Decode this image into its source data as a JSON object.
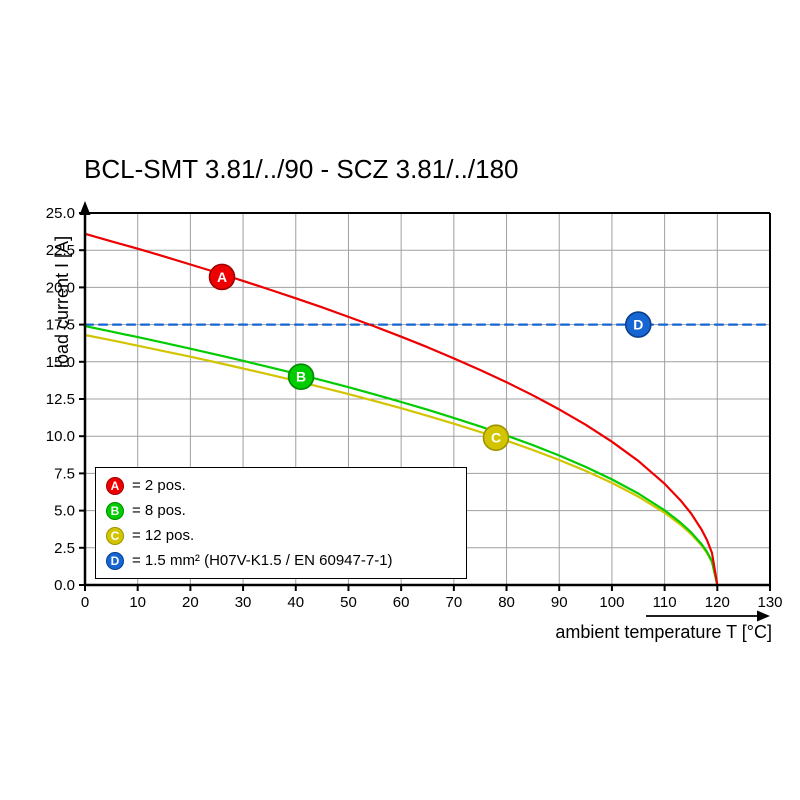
{
  "chart_data": {
    "type": "line",
    "title": "BCL-SMT 3.81/../90 - SCZ 3.81/../180",
    "xlabel": "ambient temperature T [°C]",
    "ylabel": "load current I [A]",
    "xlim": [
      0,
      130
    ],
    "ylim": [
      0,
      25
    ],
    "grid": true,
    "grid_color": "#a0a0a0",
    "x_ticks": [
      0,
      10,
      20,
      30,
      40,
      50,
      60,
      70,
      80,
      90,
      100,
      110,
      120,
      130
    ],
    "x_tick_labels": [
      "0",
      "10",
      "20",
      "30",
      "40",
      "50",
      "60",
      "70",
      "80",
      "90",
      "100",
      "110",
      "120",
      "130"
    ],
    "y_ticks": [
      0,
      2.5,
      5,
      7.5,
      10,
      12.5,
      15,
      17.5,
      20,
      22.5,
      25
    ],
    "y_tick_labels": [
      "0.0",
      "2.5",
      "5.0",
      "7.5",
      "10.0",
      "12.5",
      "15.0",
      "17.5",
      "20.0",
      "22.5",
      "25.0"
    ],
    "series": [
      {
        "id": "A",
        "name": "2 pos.",
        "color": "#ee0000",
        "edge": "#a00000",
        "style": "solid",
        "x": [
          0,
          5,
          10,
          15,
          20,
          25,
          30,
          35,
          40,
          45,
          50,
          55,
          60,
          65,
          70,
          75,
          80,
          85,
          90,
          95,
          100,
          105,
          110,
          113,
          115,
          117,
          118,
          119,
          120
        ],
        "y": [
          23.6,
          23.1,
          22.6,
          22.08,
          21.54,
          21.0,
          20.44,
          19.86,
          19.27,
          18.66,
          18.02,
          17.37,
          16.69,
          15.98,
          15.23,
          14.45,
          13.63,
          12.75,
          11.8,
          10.77,
          9.63,
          8.34,
          6.81,
          5.7,
          4.82,
          3.73,
          3.05,
          2.15,
          0
        ],
        "marker": {
          "x": 26,
          "y": 20.7,
          "label": "A"
        }
      },
      {
        "id": "B",
        "name": "8 pos.",
        "color": "#00cc00",
        "edge": "#008800",
        "style": "solid",
        "x": [
          0,
          5,
          10,
          15,
          20,
          25,
          30,
          35,
          40,
          45,
          50,
          55,
          60,
          65,
          70,
          75,
          80,
          85,
          90,
          95,
          100,
          105,
          110,
          113,
          115,
          117,
          118,
          119,
          120
        ],
        "y": [
          17.4,
          17.03,
          16.66,
          16.28,
          15.88,
          15.48,
          15.07,
          14.64,
          14.21,
          13.76,
          13.29,
          12.81,
          12.3,
          11.78,
          11.23,
          10.66,
          10.05,
          9.4,
          8.7,
          7.94,
          7.1,
          6.15,
          5.02,
          4.2,
          3.55,
          2.75,
          2.25,
          1.59,
          0
        ],
        "marker": {
          "x": 41,
          "y": 14.0,
          "label": "B"
        }
      },
      {
        "id": "C",
        "name": "12 pos.",
        "color": "#d2c500",
        "edge": "#9d9300",
        "style": "solid",
        "x": [
          0,
          5,
          10,
          15,
          20,
          25,
          30,
          35,
          40,
          45,
          50,
          55,
          60,
          65,
          70,
          75,
          80,
          85,
          90,
          95,
          100,
          105,
          110,
          113,
          115,
          117,
          118,
          119,
          120
        ],
        "y": [
          16.8,
          16.45,
          16.08,
          15.71,
          15.34,
          14.95,
          14.55,
          14.14,
          13.72,
          13.28,
          12.83,
          12.36,
          11.88,
          11.37,
          10.84,
          10.29,
          9.7,
          9.07,
          8.4,
          7.67,
          6.86,
          5.94,
          4.85,
          4.06,
          3.43,
          2.66,
          2.17,
          1.53,
          0
        ],
        "marker": {
          "x": 78,
          "y": 9.9,
          "label": "C"
        }
      },
      {
        "id": "D",
        "name": "1.5 mm² (H07V-K1.5 / EN 60947-7-1)",
        "color": "#1565d2",
        "edge": "#0a3e8c",
        "style": "dashed",
        "x": [
          0,
          130
        ],
        "y": [
          17.5,
          17.5
        ],
        "marker": {
          "x": 105,
          "y": 17.5,
          "label": "D"
        }
      }
    ],
    "legend": {
      "position": "lower-left",
      "entries": [
        {
          "key": "A",
          "text": "= 2 pos."
        },
        {
          "key": "B",
          "text": "= 8 pos."
        },
        {
          "key": "C",
          "text": "= 12 pos."
        },
        {
          "key": "D",
          "text": "= 1.5 mm² (H07V-K1.5 / EN 60947-7-1)"
        }
      ]
    }
  }
}
